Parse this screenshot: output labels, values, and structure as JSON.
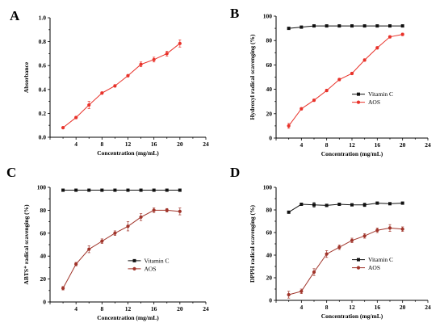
{
  "panels": [
    {
      "letter": "A",
      "chart_data": {
        "type": "line",
        "xlabel": "Concentration (mg/mL)",
        "ylabel": "Absorbance",
        "xlim": [
          0,
          24
        ],
        "ylim": [
          0,
          1.0
        ],
        "xticks": [
          0,
          4,
          8,
          12,
          16,
          20,
          24
        ],
        "yticks": [
          0.0,
          0.2,
          0.4,
          0.6,
          0.8,
          1.0
        ],
        "ytick_labels": [
          "0.0",
          "0.2",
          "0.4",
          "0.6",
          "0.8",
          "1.0"
        ],
        "legend": null,
        "series": [
          {
            "name": "",
            "color": "#e8322a",
            "marker": "circle",
            "x": [
              2,
              4,
              6,
              8,
              10,
              12,
              14,
              16,
              18,
              20
            ],
            "y": [
              0.08,
              0.165,
              0.27,
              0.37,
              0.43,
              0.515,
              0.61,
              0.65,
              0.7,
              0.785
            ],
            "err": [
              0.005,
              0.01,
              0.03,
              0.01,
              0.01,
              0.01,
              0.02,
              0.02,
              0.02,
              0.03
            ]
          }
        ]
      }
    },
    {
      "letter": "B",
      "chart_data": {
        "type": "line",
        "xlabel": "Concentration (mg/mL)",
        "ylabel": "Hydroxyl radical scavenging (%)",
        "xlim": [
          0,
          24
        ],
        "ylim": [
          0,
          100
        ],
        "xticks": [
          0,
          4,
          8,
          12,
          16,
          20,
          24
        ],
        "yticks": [
          0,
          20,
          40,
          60,
          80,
          100
        ],
        "ytick_labels": [
          "0",
          "20",
          "40",
          "60",
          "80",
          "100"
        ],
        "legend": "center-right",
        "series": [
          {
            "name": "Vitamin C",
            "color": "#111111",
            "marker": "square",
            "x": [
              2,
              4,
              6,
              8,
              10,
              12,
              14,
              16,
              18,
              20
            ],
            "y": [
              90,
              91,
              92,
              92,
              92,
              92,
              92,
              92,
              92,
              92
            ],
            "err": [
              0.5,
              0.5,
              0.5,
              0.5,
              0.5,
              0.5,
              0.5,
              0.5,
              0.5,
              0.5
            ]
          },
          {
            "name": "AOS",
            "color": "#e8322a",
            "marker": "circle",
            "x": [
              2,
              4,
              6,
              8,
              10,
              12,
              14,
              16,
              18,
              20
            ],
            "y": [
              10,
              24,
              31,
              39,
              48,
              53,
              64,
              74,
              83,
              85
            ],
            "err": [
              2,
              1,
              1,
              1,
              1,
              1,
              1,
              1,
              1,
              1
            ]
          }
        ]
      }
    },
    {
      "letter": "C",
      "chart_data": {
        "type": "line",
        "xlabel": "Concentration (mg/mL)",
        "ylabel": "ABTS⁺ radical scavenging (%)",
        "xlim": [
          0,
          24
        ],
        "ylim": [
          0,
          100
        ],
        "xticks": [
          0,
          4,
          8,
          12,
          16,
          20,
          24
        ],
        "yticks": [
          0,
          20,
          40,
          60,
          80,
          100
        ],
        "ytick_labels": [
          "0",
          "20",
          "40",
          "60",
          "80",
          "100"
        ],
        "legend": "center-right",
        "series": [
          {
            "name": "Vitamin C",
            "color": "#111111",
            "marker": "square",
            "x": [
              2,
              4,
              6,
              8,
              10,
              12,
              14,
              16,
              18,
              20
            ],
            "y": [
              97.5,
              97.5,
              97.5,
              97.5,
              97.5,
              97.5,
              97.5,
              97.5,
              97.5,
              97.5
            ],
            "err": [
              0.3,
              0.3,
              0.3,
              0.3,
              0.3,
              0.3,
              0.3,
              0.3,
              0.3,
              0.3
            ]
          },
          {
            "name": "AOS",
            "color": "#a0342a",
            "marker": "circle",
            "x": [
              2,
              4,
              6,
              8,
              10,
              12,
              14,
              16,
              18,
              20
            ],
            "y": [
              12,
              33,
              46,
              53,
              60,
              66,
              74,
              80,
              80,
              79
            ],
            "err": [
              1.5,
              1.5,
              3,
              2,
              2,
              4,
              3,
              2,
              1.5,
              3
            ]
          }
        ]
      }
    },
    {
      "letter": "D",
      "chart_data": {
        "type": "line",
        "xlabel": "Concentration (mg/mL)",
        "ylabel": "DPPH radical scavenging (%)",
        "xlim": [
          0,
          24
        ],
        "ylim": [
          0,
          100
        ],
        "xticks": [
          0,
          4,
          8,
          12,
          16,
          20,
          24
        ],
        "yticks": [
          0,
          20,
          40,
          60,
          80,
          100
        ],
        "ytick_labels": [
          "0",
          "20",
          "40",
          "60",
          "80",
          "100"
        ],
        "legend": "center-right",
        "series": [
          {
            "name": "Vitamin C",
            "color": "#111111",
            "marker": "square",
            "x": [
              2,
              4,
              6,
              8,
              10,
              12,
              14,
              16,
              18,
              20
            ],
            "y": [
              78,
              85,
              84.5,
              84,
              85,
              84.5,
              84.5,
              86,
              85.5,
              86
            ],
            "err": [
              1,
              1,
              2,
              1,
              1,
              1,
              1.5,
              1,
              1,
              1
            ]
          },
          {
            "name": "AOS",
            "color": "#a0342a",
            "marker": "circle",
            "x": [
              2,
              4,
              6,
              8,
              10,
              12,
              14,
              16,
              18,
              20
            ],
            "y": [
              5,
              8,
              25,
              41,
              47,
              53,
              57,
              62,
              64,
              63
            ],
            "err": [
              3,
              2,
              3,
              3,
              2,
              2,
              2,
              2,
              3,
              2
            ]
          }
        ]
      }
    }
  ]
}
